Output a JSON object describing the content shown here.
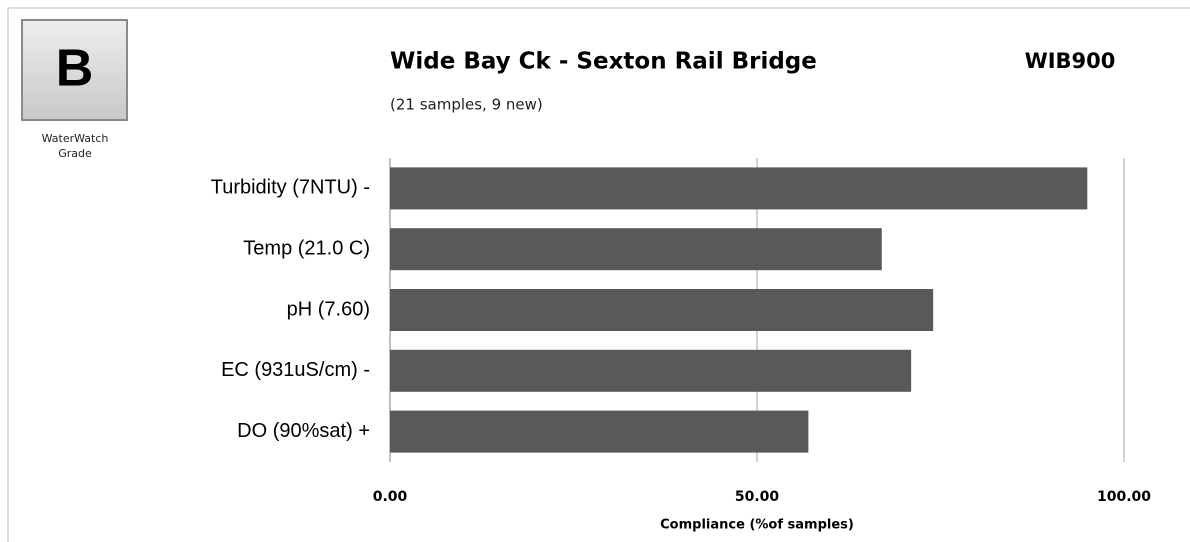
{
  "chart_data": {
    "type": "hbar",
    "title": "Wide Bay Ck - Sexton Rail Bridge",
    "subtitle": "(21 samples, 9 new)",
    "site_code": "WIB900",
    "grade": "B",
    "grade_label": "WaterWatch Grade",
    "categories": [
      "Turbidity (7NTU) -",
      "Temp (21.0 C)",
      "pH (7.60)",
      "EC (931uS/cm) -",
      "DO (90%sat) +"
    ],
    "values": [
      95,
      67,
      74,
      71,
      57
    ],
    "color": "#595959",
    "xlim": [
      0,
      100
    ],
    "xticks": [
      {
        "value": 0,
        "label": "0.00"
      },
      {
        "value": 50,
        "label": "50.00"
      },
      {
        "value": 100,
        "label": "100.00"
      }
    ],
    "xlabel": "Compliance (%of samples)",
    "grid": true
  }
}
